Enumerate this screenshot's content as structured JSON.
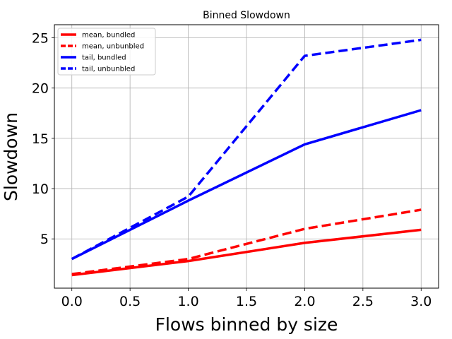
{
  "chart_data": {
    "type": "line",
    "title": "Binned Slowdown",
    "xlabel": "Flows binned by size",
    "ylabel": "Slowdown",
    "xlim": [
      -0.15,
      3.15
    ],
    "ylim": [
      0.1,
      26.3
    ],
    "xticks": [
      0.0,
      0.5,
      1.0,
      1.5,
      2.0,
      2.5,
      3.0
    ],
    "xtick_labels": [
      "0.0",
      "0.5",
      "1.0",
      "1.5",
      "2.0",
      "2.5",
      "3.0"
    ],
    "yticks": [
      5,
      10,
      15,
      20,
      25
    ],
    "ytick_labels": [
      "5",
      "10",
      "15",
      "20",
      "25"
    ],
    "grid": true,
    "legend_position": "top-left",
    "x": [
      0,
      1,
      2,
      3
    ],
    "series": [
      {
        "name": "mean, bundled",
        "color": "#ff0000",
        "style": "solid",
        "values": [
          1.4,
          2.8,
          4.6,
          5.9
        ]
      },
      {
        "name": "mean, unbunbled",
        "color": "#ff0000",
        "style": "dashed",
        "values": [
          1.5,
          3.0,
          6.0,
          7.9
        ]
      },
      {
        "name": "tail, bundled",
        "color": "#0000ff",
        "style": "solid",
        "values": [
          3.0,
          8.8,
          14.4,
          17.8
        ]
      },
      {
        "name": "tail, unbunbled",
        "color": "#0000ff",
        "style": "dashed",
        "values": [
          3.0,
          9.2,
          23.2,
          24.8
        ]
      }
    ]
  }
}
